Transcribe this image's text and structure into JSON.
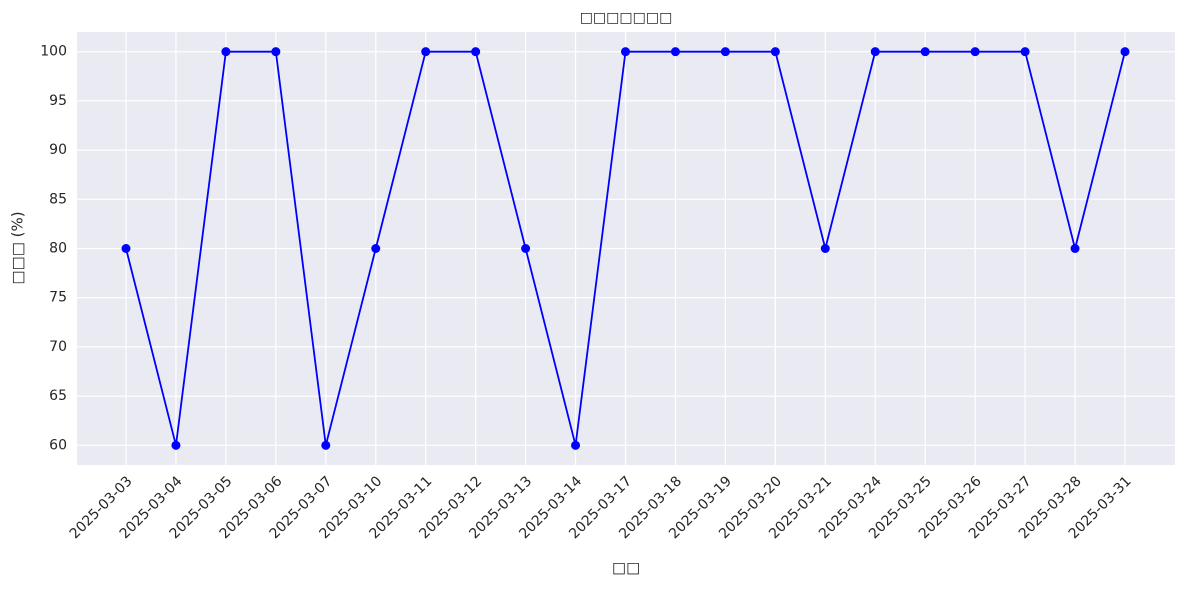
{
  "chart_data": {
    "type": "line",
    "title": "□□□□□□□",
    "x_label": "□□",
    "y_label": "□□□ (%)",
    "categories": [
      "2025-03-03",
      "2025-03-04",
      "2025-03-05",
      "2025-03-06",
      "2025-03-07",
      "2025-03-10",
      "2025-03-11",
      "2025-03-12",
      "2025-03-13",
      "2025-03-14",
      "2025-03-17",
      "2025-03-18",
      "2025-03-19",
      "2025-03-20",
      "2025-03-21",
      "2025-03-24",
      "2025-03-25",
      "2025-03-26",
      "2025-03-27",
      "2025-03-28",
      "2025-03-31"
    ],
    "values": [
      80,
      60,
      100,
      100,
      60,
      80,
      100,
      100,
      80,
      60,
      100,
      100,
      100,
      100,
      80,
      100,
      100,
      100,
      100,
      80,
      100
    ],
    "color": "#0000ff",
    "ylim": [
      58,
      102
    ],
    "yticks": [
      60,
      65,
      70,
      75,
      80,
      85,
      90,
      95,
      100
    ],
    "grid": true
  }
}
